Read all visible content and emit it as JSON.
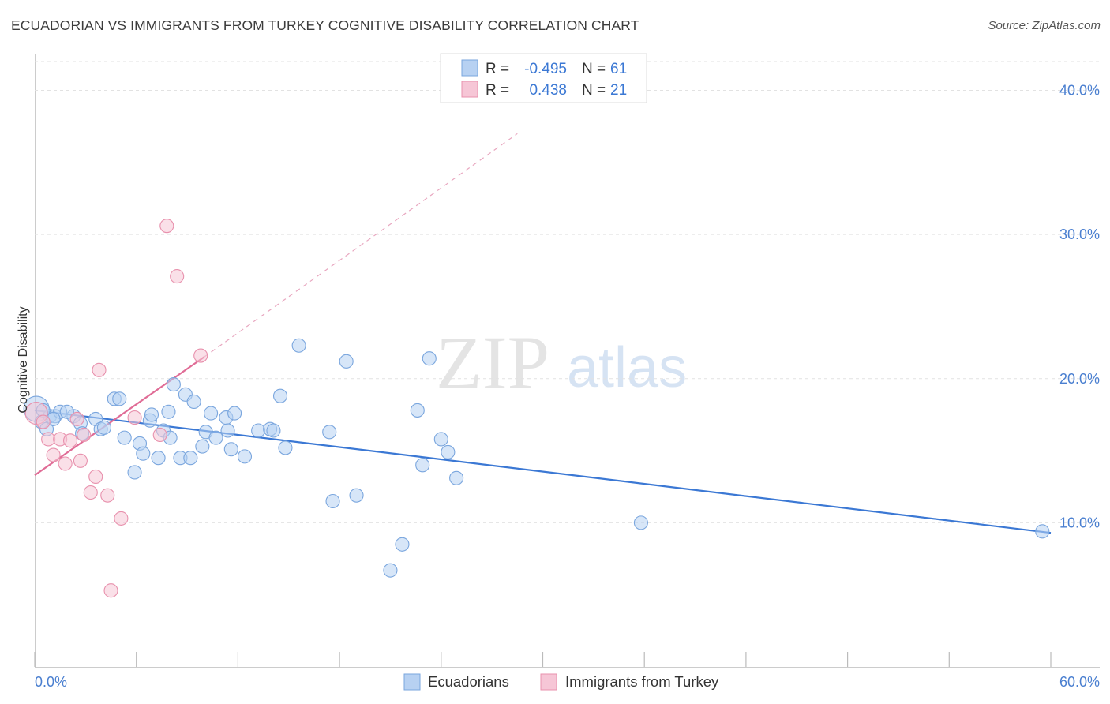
{
  "header": {
    "title": "ECUADORIAN VS IMMIGRANTS FROM TURKEY COGNITIVE DISABILITY CORRELATION CHART",
    "source": "Source: ZipAtlas.com"
  },
  "watermark": {
    "zip": "ZIP",
    "atlas": "atlas"
  },
  "legend": {
    "r_label": "R =",
    "n_label": "N =",
    "series": [
      {
        "r": "-0.495",
        "n": "61"
      },
      {
        "r": "0.438",
        "n": "21"
      }
    ]
  },
  "bottom_legend": [
    "Ecuadorians",
    "Immigrants from Turkey"
  ],
  "colors": {
    "blue_fill": "#b7d1f2",
    "blue_stroke": "#7aa6de",
    "blue_line": "#3b78d4",
    "pink_fill": "#f6c6d6",
    "pink_stroke": "#e891ad",
    "pink_line": "#e06c96",
    "axis_text": "#4a7fd0",
    "grid": "#e2e2e2"
  },
  "chart_data": {
    "type": "scatter",
    "title": "ECUADORIAN VS IMMIGRANTS FROM TURKEY COGNITIVE DISABILITY CORRELATION CHART",
    "xlabel": "",
    "ylabel": "Cognitive Disability",
    "xlim": [
      0,
      60
    ],
    "ylim": [
      0,
      42
    ],
    "x_tick_labels": [
      "0.0%",
      "60.0%"
    ],
    "y_ticks": [
      10,
      20,
      30,
      40
    ],
    "y_tick_labels": [
      "10.0%",
      "20.0%",
      "30.0%",
      "40.0%"
    ],
    "series": [
      {
        "name": "Ecuadorians",
        "r": -0.495,
        "n": 61,
        "trend": {
          "x": [
            0,
            60
          ],
          "y": [
            17.8,
            9.3
          ]
        },
        "points": [
          [
            0.1,
            17.9
          ],
          [
            0.4,
            17.0
          ],
          [
            0.7,
            16.5
          ],
          [
            0.9,
            17.4
          ],
          [
            1.2,
            17.4
          ],
          [
            1.5,
            17.7
          ],
          [
            2.3,
            17.4
          ],
          [
            1.9,
            17.7
          ],
          [
            2.7,
            16.9
          ],
          [
            2.8,
            16.2
          ],
          [
            3.6,
            17.2
          ],
          [
            3.9,
            16.5
          ],
          [
            4.1,
            16.6
          ],
          [
            4.7,
            18.6
          ],
          [
            5.0,
            18.6
          ],
          [
            5.3,
            15.9
          ],
          [
            5.9,
            13.5
          ],
          [
            6.2,
            15.5
          ],
          [
            6.4,
            14.8
          ],
          [
            6.8,
            17.1
          ],
          [
            6.9,
            17.5
          ],
          [
            7.3,
            14.5
          ],
          [
            7.6,
            16.4
          ],
          [
            7.9,
            17.7
          ],
          [
            8.0,
            15.9
          ],
          [
            8.2,
            19.6
          ],
          [
            8.6,
            14.5
          ],
          [
            8.9,
            18.9
          ],
          [
            9.2,
            14.5
          ],
          [
            9.4,
            18.4
          ],
          [
            9.9,
            15.3
          ],
          [
            10.1,
            16.3
          ],
          [
            10.4,
            17.6
          ],
          [
            10.7,
            15.9
          ],
          [
            11.3,
            17.3
          ],
          [
            11.4,
            16.4
          ],
          [
            11.6,
            15.1
          ],
          [
            11.8,
            17.6
          ],
          [
            12.4,
            14.6
          ],
          [
            13.2,
            16.4
          ],
          [
            13.9,
            16.5
          ],
          [
            14.1,
            16.4
          ],
          [
            14.5,
            18.8
          ],
          [
            14.8,
            15.2
          ],
          [
            15.6,
            22.3
          ],
          [
            17.4,
            16.3
          ],
          [
            17.6,
            11.5
          ],
          [
            18.4,
            21.2
          ],
          [
            19.0,
            11.9
          ],
          [
            21.0,
            6.7
          ],
          [
            21.7,
            8.5
          ],
          [
            22.6,
            17.8
          ],
          [
            22.9,
            14.0
          ],
          [
            23.3,
            21.4
          ],
          [
            24.0,
            15.8
          ],
          [
            24.4,
            14.9
          ],
          [
            24.9,
            13.1
          ],
          [
            35.8,
            10.0
          ],
          [
            59.5,
            9.4
          ],
          [
            0.5,
            17.8
          ],
          [
            1.1,
            17.2
          ]
        ]
      },
      {
        "name": "Immigrants from Turkey",
        "r": 0.438,
        "n": 21,
        "trend": {
          "x": [
            0,
            10
          ],
          "y": [
            13.3,
            21.5
          ]
        },
        "trend_extension": {
          "x": [
            10,
            28.5
          ],
          "y": [
            21.5,
            37
          ]
        },
        "points": [
          [
            0.1,
            17.6
          ],
          [
            0.5,
            17.0
          ],
          [
            0.8,
            15.8
          ],
          [
            1.1,
            14.7
          ],
          [
            1.5,
            15.8
          ],
          [
            1.8,
            14.1
          ],
          [
            2.1,
            15.7
          ],
          [
            2.5,
            17.2
          ],
          [
            2.7,
            14.3
          ],
          [
            2.9,
            16.1
          ],
          [
            3.3,
            12.1
          ],
          [
            3.6,
            13.2
          ],
          [
            3.8,
            20.6
          ],
          [
            4.3,
            11.9
          ],
          [
            4.5,
            5.3
          ],
          [
            5.1,
            10.3
          ],
          [
            5.9,
            17.3
          ],
          [
            7.4,
            16.1
          ],
          [
            7.8,
            30.6
          ],
          [
            8.4,
            27.1
          ],
          [
            9.8,
            21.6
          ]
        ]
      }
    ]
  }
}
